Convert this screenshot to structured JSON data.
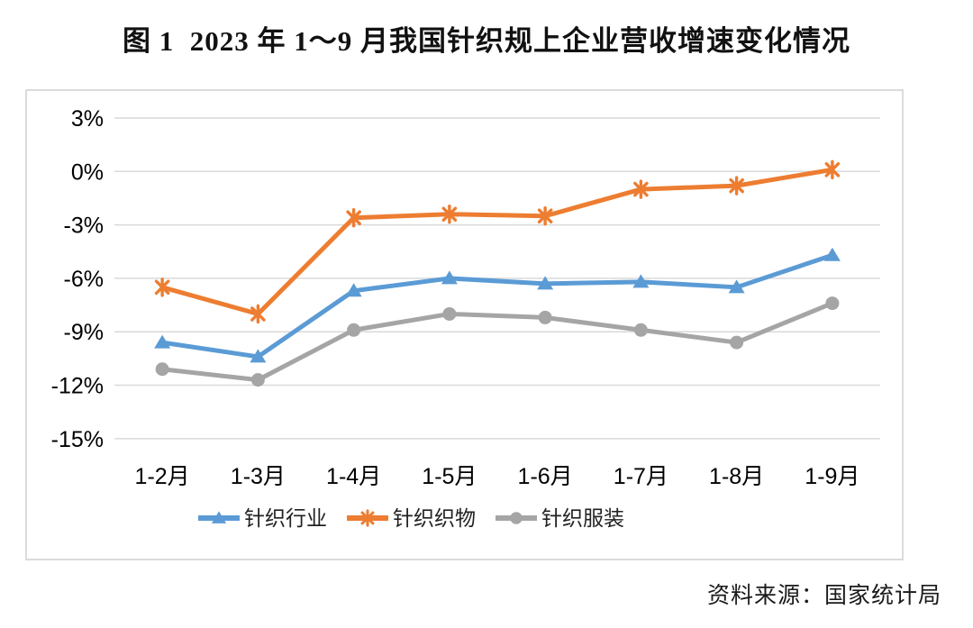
{
  "title": "图 1  2023 年 1～9 月我国针织规上企业营收增速变化情况",
  "source": "资料来源：国家统计局",
  "chart_data": {
    "type": "line",
    "categories": [
      "1-2月",
      "1-3月",
      "1-4月",
      "1-5月",
      "1-6月",
      "1-7月",
      "1-8月",
      "1-9月"
    ],
    "series": [
      {
        "name": "针织行业",
        "marker": "triangle",
        "color": "#5B9BD5",
        "values": [
          -9.6,
          -10.4,
          -6.7,
          -6.0,
          -6.3,
          -6.2,
          -6.5,
          -4.7
        ]
      },
      {
        "name": "针织织物",
        "marker": "asterisk",
        "color": "#ED7D31",
        "values": [
          -6.5,
          -8.0,
          -2.6,
          -2.4,
          -2.5,
          -1.0,
          -0.8,
          0.1
        ]
      },
      {
        "name": "针织服装",
        "marker": "circle",
        "color": "#A5A5A5",
        "values": [
          -11.1,
          -11.7,
          -8.9,
          -8.0,
          -8.2,
          -8.9,
          -9.6,
          -7.4
        ]
      }
    ],
    "y_ticks": [
      3,
      0,
      -3,
      -6,
      -9,
      -12,
      -15
    ],
    "y_tick_labels": [
      "3%",
      "0%",
      "-3%",
      "-6%",
      "-9%",
      "-12%",
      "-15%"
    ],
    "ylim": [
      -15,
      3
    ],
    "xlabel": "",
    "ylabel": "",
    "grid": true,
    "legend_position": "bottom",
    "gridline_color": "#D9D9D9",
    "axis_label_color": "#000000",
    "plot_border_color": "#DBDBDB"
  }
}
